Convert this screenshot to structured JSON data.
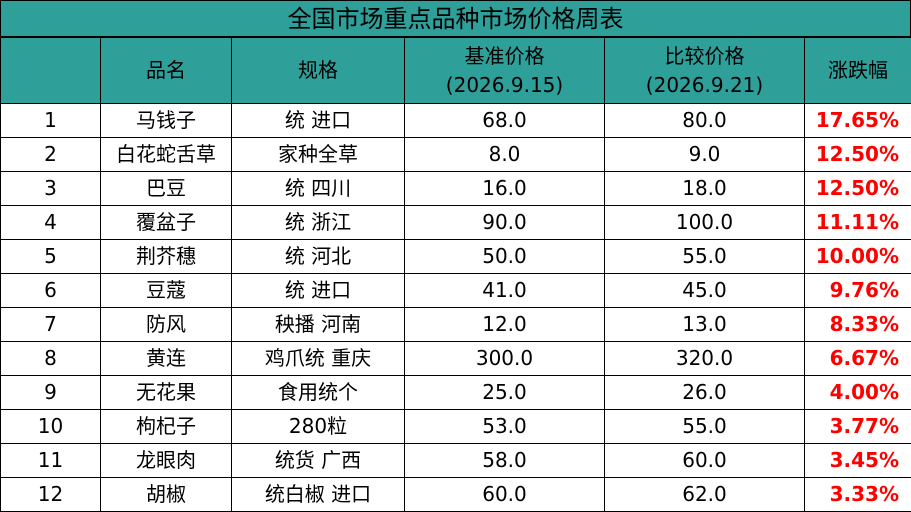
{
  "title": "全国市场重点品种市场价格周表",
  "headers": {
    "index": "",
    "name": "品名",
    "spec": "规格",
    "base_price": "基准价格",
    "base_date": "(2026.9.15)",
    "compare_price": "比较价格",
    "compare_date": "(2026.9.21)",
    "change": "涨跌幅"
  },
  "rows": [
    {
      "no": "1",
      "name": "马钱子",
      "spec": "统 进口",
      "base": "68.0",
      "compare": "80.0",
      "change": "17.65%"
    },
    {
      "no": "2",
      "name": "白花蛇舌草",
      "spec": "家种全草",
      "base": "8.0",
      "compare": "9.0",
      "change": "12.50%"
    },
    {
      "no": "3",
      "name": "巴豆",
      "spec": "统 四川",
      "base": "16.0",
      "compare": "18.0",
      "change": "12.50%"
    },
    {
      "no": "4",
      "name": "覆盆子",
      "spec": "统 浙江",
      "base": "90.0",
      "compare": "100.0",
      "change": "11.11%"
    },
    {
      "no": "5",
      "name": "荆芥穗",
      "spec": "统 河北",
      "base": "50.0",
      "compare": "55.0",
      "change": "10.00%"
    },
    {
      "no": "6",
      "name": "豆蔻",
      "spec": "统 进口",
      "base": "41.0",
      "compare": "45.0",
      "change": "9.76%"
    },
    {
      "no": "7",
      "name": "防风",
      "spec": "秧播 河南",
      "base": "12.0",
      "compare": "13.0",
      "change": "8.33%"
    },
    {
      "no": "8",
      "name": "黄连",
      "spec": "鸡爪统 重庆",
      "base": "300.0",
      "compare": "320.0",
      "change": "6.67%"
    },
    {
      "no": "9",
      "name": "无花果",
      "spec": "食用统个",
      "base": "25.0",
      "compare": "26.0",
      "change": "4.00%"
    },
    {
      "no": "10",
      "name": "枸杞子",
      "spec": "280粒",
      "base": "53.0",
      "compare": "55.0",
      "change": "3.77%"
    },
    {
      "no": "11",
      "name": "龙眼肉",
      "spec": "统货 广西",
      "base": "58.0",
      "compare": "60.0",
      "change": "3.45%"
    },
    {
      "no": "12",
      "name": "胡椒",
      "spec": "统白椒 进口",
      "base": "60.0",
      "compare": "62.0",
      "change": "3.33%"
    }
  ],
  "colors": {
    "header_bg": "#2f9f9a",
    "change_text": "#ff0000"
  }
}
